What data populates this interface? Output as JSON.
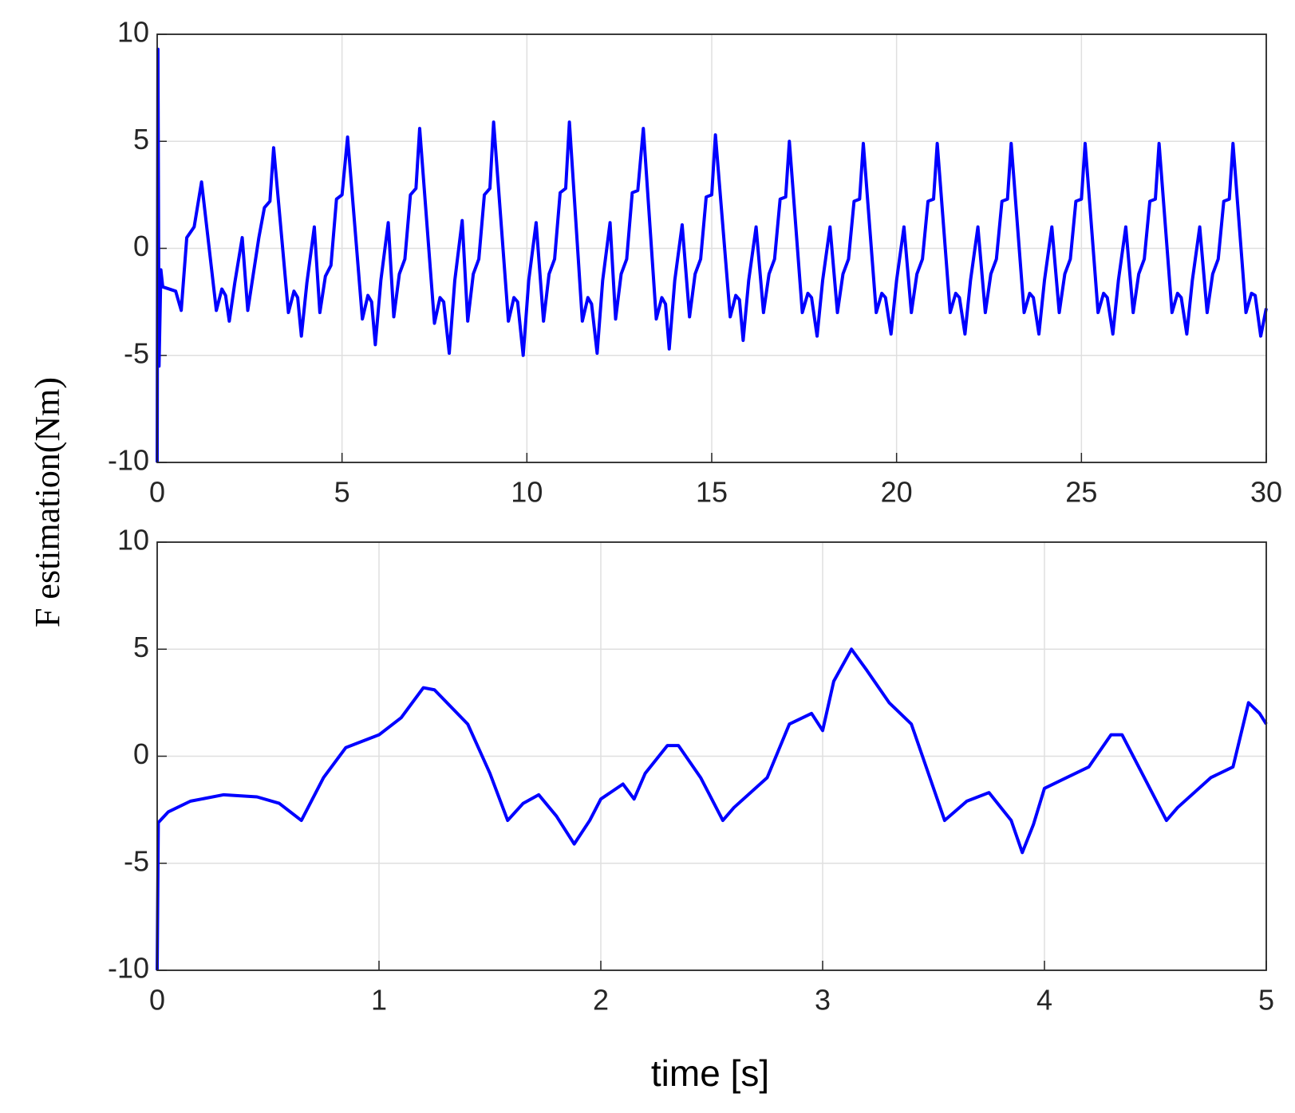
{
  "chart_data": [
    {
      "type": "line",
      "ylabel": "F estimation(Nm)",
      "color": "#0000ff",
      "grid": true,
      "xlim": [
        0,
        30
      ],
      "ylim": [
        -10,
        10
      ],
      "xticks": [
        0,
        5,
        10,
        15,
        20,
        25,
        30
      ],
      "yticks": [
        -10,
        -5,
        0,
        5,
        10
      ],
      "x": [
        0,
        0.02,
        0.05,
        0.1,
        0.15,
        0.5,
        0.65,
        0.8,
        1.0,
        1.2,
        1.6,
        1.75,
        1.85,
        1.95,
        2.1,
        2.3,
        2.45,
        2.6,
        2.75,
        2.9,
        3.05,
        3.15,
        3.55,
        3.7,
        3.8,
        3.9,
        4.05,
        4.25,
        4.4,
        4.55,
        4.7,
        4.85,
        5.0,
        5.15,
        5.55,
        5.7,
        5.8,
        5.9,
        6.05,
        6.25,
        6.4,
        6.55,
        6.7,
        6.85,
        7.0,
        7.1,
        7.5,
        7.65,
        7.75,
        7.9,
        8.05,
        8.25,
        8.4,
        8.55,
        8.7,
        8.85,
        9.0,
        9.1,
        9.5,
        9.65,
        9.75,
        9.9,
        10.05,
        10.25,
        10.45,
        10.6,
        10.75,
        10.9,
        11.05,
        11.15,
        11.5,
        11.65,
        11.75,
        11.9,
        12.05,
        12.25,
        12.4,
        12.55,
        12.7,
        12.85,
        13.0,
        13.15,
        13.5,
        13.65,
        13.75,
        13.85,
        14.0,
        14.2,
        14.4,
        14.55,
        14.7,
        14.85,
        15.0,
        15.1,
        15.5,
        15.65,
        15.75,
        15.85,
        16.0,
        16.2,
        16.4,
        16.55,
        16.7,
        16.85,
        17.0,
        17.1,
        17.45,
        17.6,
        17.7,
        17.85,
        18.0,
        18.2,
        18.4,
        18.55,
        18.7,
        18.85,
        19.0,
        19.1,
        19.45,
        19.6,
        19.7,
        19.85,
        20.0,
        20.2,
        20.4,
        20.55,
        20.7,
        20.85,
        21.0,
        21.1,
        21.45,
        21.6,
        21.7,
        21.85,
        22.0,
        22.2,
        22.4,
        22.55,
        22.7,
        22.85,
        23.0,
        23.1,
        23.45,
        23.6,
        23.7,
        23.85,
        24.0,
        24.2,
        24.4,
        24.55,
        24.7,
        24.85,
        25.0,
        25.1,
        25.45,
        25.6,
        25.7,
        25.85,
        26.0,
        26.2,
        26.4,
        26.55,
        26.7,
        26.85,
        27.0,
        27.1,
        27.45,
        27.6,
        27.7,
        27.85,
        28.0,
        28.2,
        28.4,
        28.55,
        28.7,
        28.85,
        29.0,
        29.1,
        29.45,
        29.6,
        29.7,
        29.85,
        30
      ],
      "values": [
        -10,
        9.3,
        -5.5,
        -1,
        -1.8,
        -2,
        -2.9,
        0.5,
        1,
        3.1,
        -2.9,
        -1.9,
        -2.2,
        -3.4,
        -1.6,
        0.5,
        -2.9,
        -1.2,
        0.5,
        1.9,
        2.2,
        4.7,
        -3,
        -2,
        -2.3,
        -4.1,
        -1.6,
        1,
        -3,
        -1.3,
        -0.8,
        2.3,
        2.5,
        5.2,
        -3.3,
        -2.2,
        -2.5,
        -4.5,
        -1.5,
        1.2,
        -3.2,
        -1.2,
        -0.5,
        2.5,
        2.8,
        5.6,
        -3.5,
        -2.3,
        -2.5,
        -4.9,
        -1.5,
        1.3,
        -3.4,
        -1.2,
        -0.5,
        2.5,
        2.8,
        5.9,
        -3.4,
        -2.3,
        -2.5,
        -5,
        -1.5,
        1.2,
        -3.4,
        -1.2,
        -0.5,
        2.6,
        2.8,
        5.9,
        -3.4,
        -2.3,
        -2.6,
        -4.9,
        -1.5,
        1.2,
        -3.3,
        -1.2,
        -0.5,
        2.6,
        2.7,
        5.6,
        -3.3,
        -2.3,
        -2.6,
        -4.7,
        -1.5,
        1.1,
        -3.2,
        -1.2,
        -0.5,
        2.4,
        2.5,
        5.3,
        -3.2,
        -2.2,
        -2.4,
        -4.3,
        -1.5,
        1,
        -3,
        -1.2,
        -0.5,
        2.3,
        2.4,
        5,
        -3,
        -2.1,
        -2.3,
        -4.1,
        -1.5,
        1,
        -3,
        -1.2,
        -0.5,
        2.2,
        2.3,
        4.9,
        -3,
        -2.1,
        -2.3,
        -4,
        -1.5,
        1,
        -3,
        -1.2,
        -0.5,
        2.2,
        2.3,
        4.9,
        -3,
        -2.1,
        -2.3,
        -4,
        -1.5,
        1,
        -3,
        -1.2,
        -0.5,
        2.2,
        2.3,
        4.9,
        -3,
        -2.1,
        -2.3,
        -4,
        -1.5,
        1,
        -3,
        -1.2,
        -0.5,
        2.2,
        2.3,
        4.9,
        -3,
        -2.1,
        -2.3,
        -4,
        -1.5,
        1,
        -3,
        -1.2,
        -0.5,
        2.2,
        2.3,
        4.9,
        -3,
        -2.1,
        -2.3,
        -4,
        -1.5,
        1,
        -3,
        -1.2,
        -0.5,
        2.2,
        2.3,
        4.9,
        -3,
        -2.1,
        -2.2,
        -4.1,
        -2.8
      ]
    },
    {
      "type": "line",
      "xlabel": "time [s]",
      "color": "#0000ff",
      "grid": true,
      "xlim": [
        0,
        5
      ],
      "ylim": [
        -10,
        10
      ],
      "xticks": [
        0,
        1,
        2,
        3,
        4,
        5
      ],
      "yticks": [
        -10,
        -5,
        0,
        5,
        10
      ],
      "x": [
        0,
        0.005,
        0.05,
        0.15,
        0.3,
        0.45,
        0.55,
        0.65,
        0.75,
        0.85,
        1.0,
        1.1,
        1.2,
        1.25,
        1.4,
        1.5,
        1.58,
        1.65,
        1.72,
        1.8,
        1.88,
        1.95,
        2.0,
        2.1,
        2.15,
        2.2,
        2.3,
        2.35,
        2.45,
        2.55,
        2.6,
        2.75,
        2.85,
        2.95,
        3.0,
        3.05,
        3.13,
        3.2,
        3.3,
        3.4,
        3.5,
        3.55,
        3.65,
        3.75,
        3.85,
        3.9,
        3.95,
        4.0,
        4.1,
        4.2,
        4.3,
        4.35,
        4.45,
        4.55,
        4.6,
        4.75,
        4.85,
        4.92,
        4.97,
        5.0
      ],
      "values": [
        -10,
        -3.1,
        -2.6,
        -2.1,
        -1.8,
        -1.9,
        -2.2,
        -3,
        -1,
        0.4,
        1,
        1.8,
        3.2,
        3.1,
        1.5,
        -0.8,
        -3,
        -2.2,
        -1.8,
        -2.8,
        -4.1,
        -3,
        -2,
        -1.3,
        -2,
        -0.8,
        0.5,
        0.5,
        -1,
        -3,
        -2.4,
        -1,
        1.5,
        2,
        1.2,
        3.5,
        5,
        4,
        2.5,
        1.5,
        -1.5,
        -3,
        -2.1,
        -1.7,
        -3,
        -4.5,
        -3.2,
        -1.5,
        -1,
        -0.5,
        1,
        1,
        -1,
        -3,
        -2.4,
        -1,
        -0.5,
        2.5,
        2,
        1.5
      ]
    }
  ]
}
